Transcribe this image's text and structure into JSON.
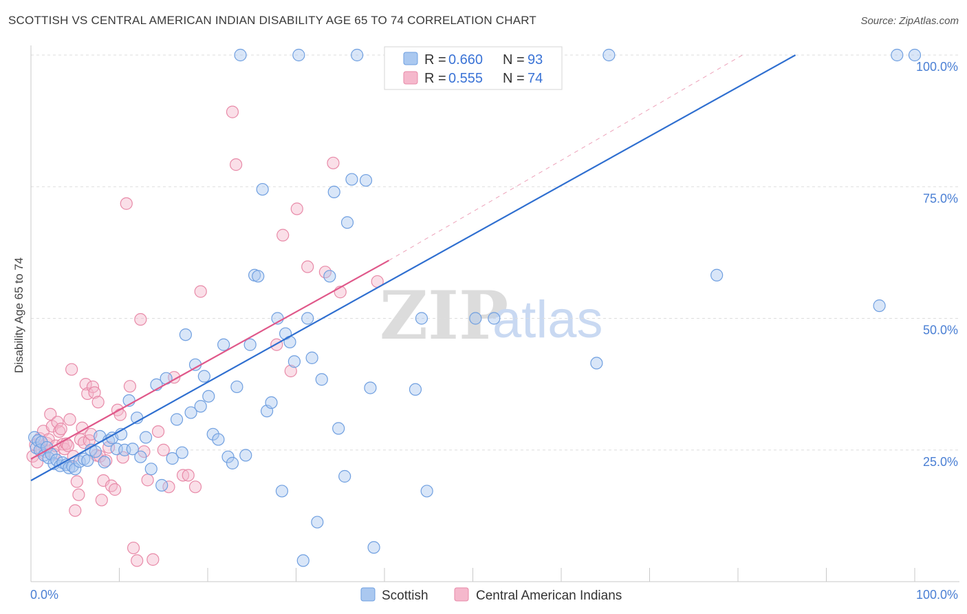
{
  "title": "SCOTTISH VS CENTRAL AMERICAN INDIAN DISABILITY AGE 65 TO 74 CORRELATION CHART",
  "source": "Source: ZipAtlas.com",
  "watermark": {
    "zip": "ZIP",
    "atlas": "atlas"
  },
  "colors": {
    "blue_fill": "#aac8f0",
    "blue_stroke": "#6f9fe0",
    "blue_line": "#2f6fd0",
    "pink_fill": "#f5b8cc",
    "pink_stroke": "#e88aa8",
    "pink_line": "#e0588a",
    "grid": "#dddddd",
    "tick_label": "#4a7fd4"
  },
  "legend": {
    "r_label": "R =",
    "n_label": "N =",
    "items": [
      {
        "r": "0.660",
        "n": "93"
      },
      {
        "r": "0.555",
        "n": "74"
      }
    ]
  },
  "bottom_legend": [
    "Scottish",
    "Central American Indians"
  ],
  "chart_data": {
    "type": "scatter",
    "title": "SCOTTISH VS CENTRAL AMERICAN INDIAN DISABILITY AGE 65 TO 74 CORRELATION CHART",
    "xlabel": "",
    "ylabel": "Disability Age 65 to 74",
    "xlim": [
      0,
      100
    ],
    "ylim": [
      0,
      100
    ],
    "x_tick_labels": [
      "0.0%",
      "100.0%"
    ],
    "y_ticks": [
      25,
      50,
      75,
      100
    ],
    "y_tick_labels": [
      "25.0%",
      "50.0%",
      "75.0%",
      "100.0%"
    ],
    "grid": true,
    "legend_position": "top-center",
    "series": [
      {
        "name": "Scottish",
        "color": "#6f9fe0",
        "r": 0.66,
        "n": 93,
        "trend": {
          "x": [
            0,
            86.5
          ],
          "y": [
            19.2,
            100
          ]
        },
        "points": [
          [
            0.4,
            27.4
          ],
          [
            0.6,
            25.4
          ],
          [
            0.8,
            26.8
          ],
          [
            1.0,
            25.0
          ],
          [
            1.2,
            26.5
          ],
          [
            1.5,
            24.0
          ],
          [
            1.8,
            25.5
          ],
          [
            2.0,
            23.5
          ],
          [
            2.3,
            24.2
          ],
          [
            2.6,
            22.4
          ],
          [
            2.9,
            23.1
          ],
          [
            3.3,
            22.0
          ],
          [
            3.6,
            22.6
          ],
          [
            4.0,
            22.2
          ],
          [
            4.3,
            21.6
          ],
          [
            4.7,
            21.9
          ],
          [
            5.0,
            21.4
          ],
          [
            5.5,
            22.8
          ],
          [
            6.0,
            23.3
          ],
          [
            6.4,
            23.0
          ],
          [
            6.8,
            25.0
          ],
          [
            7.3,
            24.7
          ],
          [
            7.8,
            27.6
          ],
          [
            8.3,
            22.7
          ],
          [
            8.8,
            26.8
          ],
          [
            9.2,
            27.3
          ],
          [
            9.7,
            25.2
          ],
          [
            10.2,
            28.0
          ],
          [
            10.6,
            25.0
          ],
          [
            11.1,
            34.4
          ],
          [
            11.5,
            25.2
          ],
          [
            12.0,
            31.1
          ],
          [
            12.4,
            23.7
          ],
          [
            13.0,
            27.4
          ],
          [
            13.6,
            21.4
          ],
          [
            14.2,
            37.4
          ],
          [
            14.8,
            18.3
          ],
          [
            15.3,
            38.6
          ],
          [
            16.0,
            23.4
          ],
          [
            16.5,
            30.8
          ],
          [
            17.1,
            24.5
          ],
          [
            17.5,
            46.9
          ],
          [
            18.1,
            32.1
          ],
          [
            18.6,
            41.2
          ],
          [
            19.2,
            33.3
          ],
          [
            19.6,
            39.0
          ],
          [
            20.1,
            35.2
          ],
          [
            20.6,
            28.0
          ],
          [
            21.2,
            27.0
          ],
          [
            21.8,
            45.0
          ],
          [
            22.3,
            23.7
          ],
          [
            22.8,
            22.5
          ],
          [
            23.3,
            37.0
          ],
          [
            23.7,
            100
          ],
          [
            24.3,
            24.0
          ],
          [
            24.8,
            45.0
          ],
          [
            25.3,
            58.2
          ],
          [
            25.7,
            58.0
          ],
          [
            26.2,
            74.5
          ],
          [
            26.7,
            32.4
          ],
          [
            27.2,
            34.0
          ],
          [
            27.9,
            50.0
          ],
          [
            28.4,
            17.2
          ],
          [
            28.8,
            47.1
          ],
          [
            29.3,
            45.5
          ],
          [
            29.8,
            41.8
          ],
          [
            30.3,
            100
          ],
          [
            30.8,
            4.0
          ],
          [
            31.3,
            50.0
          ],
          [
            31.8,
            42.5
          ],
          [
            32.4,
            11.3
          ],
          [
            32.9,
            38.4
          ],
          [
            33.8,
            58.0
          ],
          [
            34.3,
            74.0
          ],
          [
            34.8,
            29.1
          ],
          [
            35.5,
            20.0
          ],
          [
            35.8,
            68.2
          ],
          [
            36.3,
            76.4
          ],
          [
            36.9,
            100
          ],
          [
            37.9,
            76.2
          ],
          [
            38.4,
            36.8
          ],
          [
            38.8,
            6.5
          ],
          [
            43.5,
            36.5
          ],
          [
            44.8,
            17.2
          ],
          [
            44.2,
            50.0
          ],
          [
            48.8,
            100
          ],
          [
            50.3,
            50.0
          ],
          [
            52.4,
            50.0
          ],
          [
            54.2,
            100
          ],
          [
            64.0,
            41.5
          ],
          [
            65.4,
            100
          ],
          [
            77.6,
            58.2
          ],
          [
            96.0,
            52.4
          ],
          [
            98.0,
            100
          ],
          [
            100.0,
            100
          ]
        ]
      },
      {
        "name": "Central American Indians",
        "color": "#e88aa8",
        "r": 0.555,
        "n": 74,
        "trend": {
          "x": [
            0,
            40.5
          ],
          "y": [
            23.3,
            61.0
          ]
        },
        "trend_dashed": {
          "x": [
            40.5,
            80.5
          ],
          "y": [
            61.0,
            100
          ]
        },
        "points": [
          [
            0.2,
            23.8
          ],
          [
            0.5,
            26.0
          ],
          [
            0.7,
            22.7
          ],
          [
            1.0,
            27.2
          ],
          [
            1.2,
            25.0
          ],
          [
            1.4,
            28.6
          ],
          [
            1.6,
            24.7
          ],
          [
            1.8,
            26.3
          ],
          [
            2.0,
            27.0
          ],
          [
            2.2,
            31.8
          ],
          [
            2.4,
            29.5
          ],
          [
            2.6,
            24.2
          ],
          [
            2.8,
            25.8
          ],
          [
            3.0,
            30.3
          ],
          [
            3.2,
            28.5
          ],
          [
            3.4,
            29.0
          ],
          [
            3.6,
            26.1
          ],
          [
            3.8,
            25.2
          ],
          [
            4.0,
            26.2
          ],
          [
            4.2,
            25.8
          ],
          [
            4.4,
            30.8
          ],
          [
            4.6,
            40.3
          ],
          [
            4.8,
            23.8
          ],
          [
            5.0,
            13.5
          ],
          [
            5.2,
            19.0
          ],
          [
            5.4,
            16.5
          ],
          [
            5.6,
            27.0
          ],
          [
            5.8,
            29.2
          ],
          [
            6.0,
            26.4
          ],
          [
            6.2,
            37.5
          ],
          [
            6.4,
            35.7
          ],
          [
            6.6,
            26.8
          ],
          [
            6.8,
            28.0
          ],
          [
            7.0,
            37.0
          ],
          [
            7.2,
            35.9
          ],
          [
            7.4,
            24.0
          ],
          [
            7.6,
            34.1
          ],
          [
            7.8,
            23.8
          ],
          [
            8.0,
            15.5
          ],
          [
            8.2,
            19.2
          ],
          [
            8.5,
            23.0
          ],
          [
            8.8,
            25.5
          ],
          [
            9.1,
            18.2
          ],
          [
            9.5,
            17.5
          ],
          [
            9.8,
            32.6
          ],
          [
            10.1,
            31.7
          ],
          [
            10.4,
            23.6
          ],
          [
            10.8,
            71.8
          ],
          [
            11.2,
            37.1
          ],
          [
            11.6,
            6.4
          ],
          [
            12.0,
            4.0
          ],
          [
            12.4,
            49.8
          ],
          [
            12.8,
            24.7
          ],
          [
            13.2,
            19.3
          ],
          [
            13.8,
            4.2
          ],
          [
            14.4,
            28.5
          ],
          [
            15.0,
            25.0
          ],
          [
            15.6,
            18.0
          ],
          [
            16.2,
            38.8
          ],
          [
            17.2,
            20.2
          ],
          [
            17.8,
            20.2
          ],
          [
            18.6,
            18.0
          ],
          [
            19.2,
            55.1
          ],
          [
            22.8,
            89.2
          ],
          [
            23.2,
            79.2
          ],
          [
            27.8,
            45.0
          ],
          [
            28.5,
            65.8
          ],
          [
            29.4,
            40.0
          ],
          [
            30.1,
            70.8
          ],
          [
            31.3,
            59.8
          ],
          [
            33.3,
            58.8
          ],
          [
            34.2,
            79.5
          ],
          [
            35.0,
            55.0
          ],
          [
            39.2,
            57.0
          ]
        ]
      }
    ]
  }
}
